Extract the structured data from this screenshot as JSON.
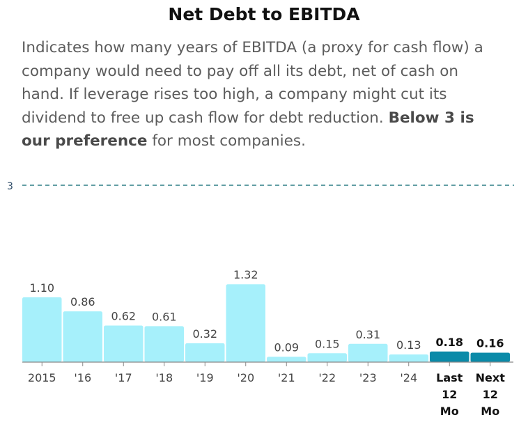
{
  "title": "Net Debt to EBITDA",
  "description": {
    "text": "Indicates how many years of EBITDA (a proxy for cash flow) a company would need to pay off all its debt, net of cash on hand. If leverage rises too high, a company might cut its dividend to free up cash flow for debt reduction. ",
    "bold": "Below 3 is our preference",
    "tail": " for most companies."
  },
  "colors": {
    "bar_historical": "#a6f0fb",
    "bar_current": "#0a8aa8",
    "reference_line": "#2f7f86",
    "axis": "#888888"
  },
  "chart_data": {
    "type": "bar",
    "title": "Net Debt to EBITDA",
    "categories": [
      "2015",
      "'16",
      "'17",
      "'18",
      "'19",
      "'20",
      "'21",
      "'22",
      "'23",
      "'24",
      "Last 12 Mo",
      "Next 12 Mo"
    ],
    "values": [
      1.1,
      0.86,
      0.62,
      0.61,
      0.32,
      1.32,
      0.09,
      0.15,
      0.31,
      0.13,
      0.18,
      0.16
    ],
    "value_labels": [
      "1.10",
      "0.86",
      "0.62",
      "0.61",
      "0.32",
      "1.32",
      "0.09",
      "0.15",
      "0.31",
      "0.13",
      "0.18",
      "0.16"
    ],
    "highlighted": [
      false,
      false,
      false,
      false,
      false,
      false,
      false,
      false,
      false,
      false,
      true,
      true
    ],
    "reference_line": {
      "value": 3,
      "label": "3",
      "style": "dashed"
    },
    "ylim": [
      0,
      3
    ],
    "xlabel": "",
    "ylabel": ""
  }
}
